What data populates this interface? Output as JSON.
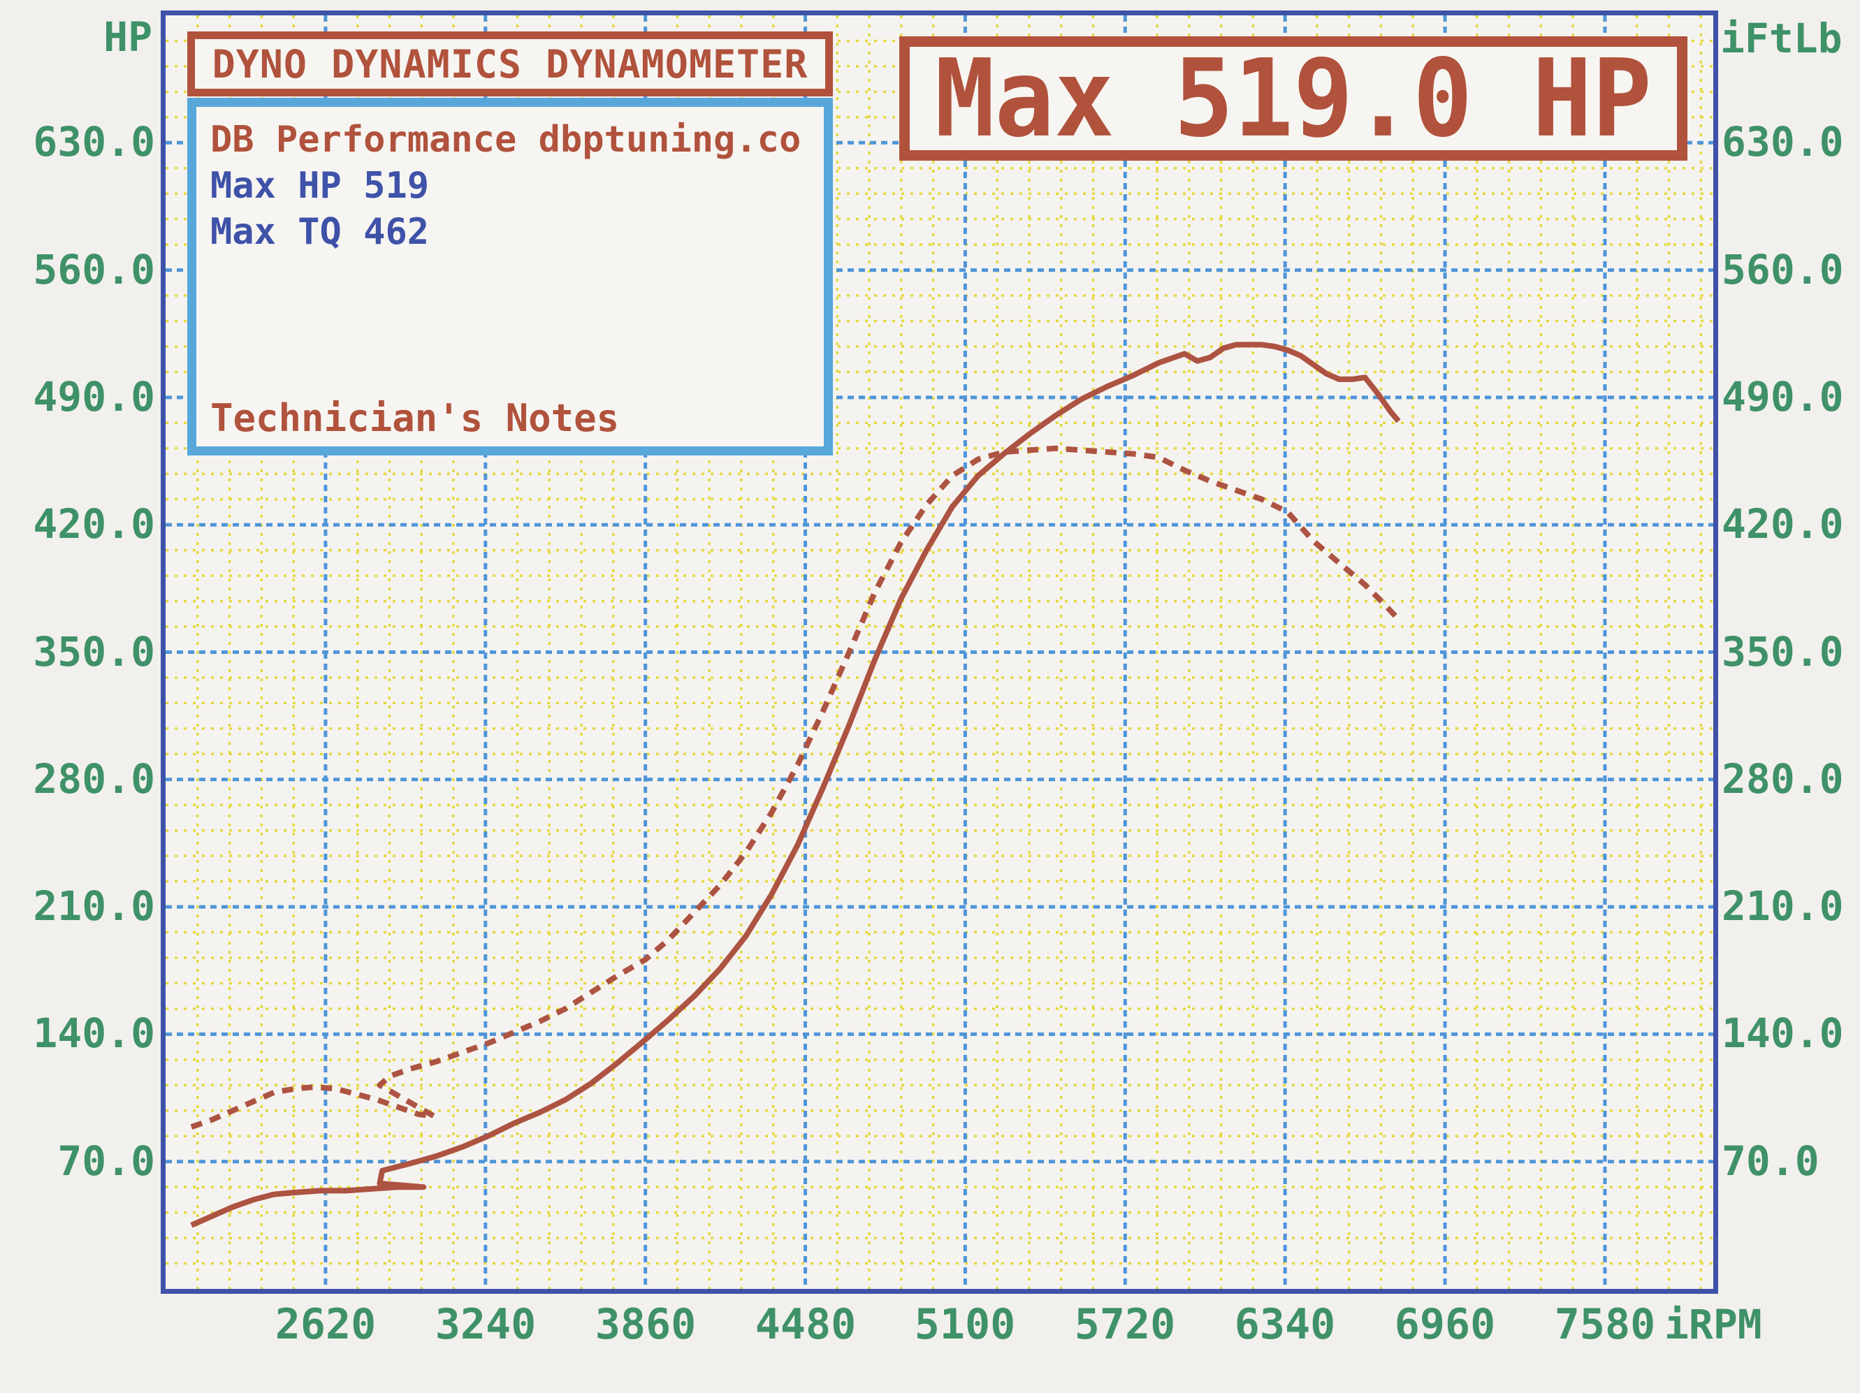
{
  "header": {
    "title_box_label": "DYNO DYNAMICS DYNAMOMETER",
    "max_box_label": "Max 519.0 HP"
  },
  "info_box": {
    "shop_line": "DB Performance dbptuning.co",
    "max_hp_line": "Max HP 519",
    "max_tq_line": "Max TQ 462",
    "notes_label": "Technician's Notes"
  },
  "axes": {
    "left_axis_title": "HP",
    "right_axis_title": "iFtLb",
    "x_unit_label": "iRPM",
    "y_ticks": [
      {
        "value": 630,
        "label": "630.0"
      },
      {
        "value": 560,
        "label": "560.0"
      },
      {
        "value": 490,
        "label": "490.0"
      },
      {
        "value": 420,
        "label": "420.0"
      },
      {
        "value": 350,
        "label": "350.0"
      },
      {
        "value": 280,
        "label": "280.0"
      },
      {
        "value": 210,
        "label": "210.0"
      },
      {
        "value": 140,
        "label": "140.0"
      },
      {
        "value": 70,
        "label": "70.0"
      }
    ],
    "x_ticks": [
      {
        "value": 2620,
        "label": "2620"
      },
      {
        "value": 3240,
        "label": "3240"
      },
      {
        "value": 3860,
        "label": "3860"
      },
      {
        "value": 4480,
        "label": "4480"
      },
      {
        "value": 5100,
        "label": "5100"
      },
      {
        "value": 5720,
        "label": "5720"
      },
      {
        "value": 6340,
        "label": "6340"
      },
      {
        "value": 6960,
        "label": "6960"
      },
      {
        "value": 7580,
        "label": "7580"
      }
    ]
  },
  "colors": {
    "curve_red": "#ad5342",
    "brand_red": "#b0523c",
    "navy_blue": "#3e52a8",
    "light_blue": "#57a7da",
    "green_text": "#3f9168",
    "grid_yellow": "#e6d83c",
    "grid_blue": "#4e95d9",
    "paper": "#f2f0ed"
  },
  "chart_data": {
    "type": "line",
    "title": "Max 519.0 HP",
    "xlabel": "iRPM",
    "ylabel_left": "HP",
    "ylabel_right": "iFtLb",
    "xlim": [
      2000,
      8000
    ],
    "ylim": [
      0,
      700
    ],
    "x_major_step": 620,
    "x_minor_step": 124,
    "y_major_step": 70,
    "y_minor_step": 14,
    "grid": "on",
    "series": [
      {
        "name": "HP",
        "style": "solid",
        "max": 519,
        "points": [
          [
            2100,
            35
          ],
          [
            2180,
            40
          ],
          [
            2260,
            45
          ],
          [
            2340,
            49
          ],
          [
            2420,
            52
          ],
          [
            2500,
            53
          ],
          [
            2600,
            54
          ],
          [
            2700,
            54
          ],
          [
            2800,
            55
          ],
          [
            2900,
            56
          ],
          [
            3000,
            56
          ],
          [
            2830,
            58
          ],
          [
            2840,
            65
          ],
          [
            2950,
            69
          ],
          [
            3050,
            73
          ],
          [
            3150,
            78
          ],
          [
            3250,
            84
          ],
          [
            3350,
            91
          ],
          [
            3450,
            97
          ],
          [
            3550,
            104
          ],
          [
            3650,
            113
          ],
          [
            3750,
            124
          ],
          [
            3860,
            137
          ],
          [
            3950,
            148
          ],
          [
            4050,
            161
          ],
          [
            4150,
            176
          ],
          [
            4250,
            194
          ],
          [
            4350,
            217
          ],
          [
            4450,
            244
          ],
          [
            4550,
            276
          ],
          [
            4650,
            310
          ],
          [
            4750,
            346
          ],
          [
            4850,
            379
          ],
          [
            4950,
            406
          ],
          [
            5050,
            430
          ],
          [
            5150,
            447
          ],
          [
            5250,
            459
          ],
          [
            5350,
            470
          ],
          [
            5450,
            480
          ],
          [
            5550,
            489
          ],
          [
            5650,
            496
          ],
          [
            5750,
            502
          ],
          [
            5850,
            509
          ],
          [
            5950,
            514
          ],
          [
            6000,
            510
          ],
          [
            6050,
            512
          ],
          [
            6100,
            517
          ],
          [
            6150,
            519
          ],
          [
            6250,
            519
          ],
          [
            6300,
            518
          ],
          [
            6350,
            516
          ],
          [
            6400,
            513
          ],
          [
            6450,
            508
          ],
          [
            6500,
            503
          ],
          [
            6550,
            500
          ],
          [
            6600,
            500
          ],
          [
            6650,
            501
          ],
          [
            6700,
            492
          ],
          [
            6750,
            482
          ],
          [
            6780,
            477
          ]
        ]
      },
      {
        "name": "TQ",
        "style": "dashed",
        "max": 462,
        "points": [
          [
            2100,
            89
          ],
          [
            2180,
            93
          ],
          [
            2260,
            98
          ],
          [
            2340,
            103
          ],
          [
            2420,
            108
          ],
          [
            2500,
            110
          ],
          [
            2580,
            111
          ],
          [
            2660,
            110
          ],
          [
            2740,
            107
          ],
          [
            2820,
            104
          ],
          [
            2900,
            100
          ],
          [
            2980,
            96
          ],
          [
            3040,
            95
          ],
          [
            2830,
            112
          ],
          [
            2870,
            117
          ],
          [
            2950,
            121
          ],
          [
            3050,
            125
          ],
          [
            3150,
            130
          ],
          [
            3250,
            135
          ],
          [
            3350,
            141
          ],
          [
            3450,
            147
          ],
          [
            3550,
            154
          ],
          [
            3650,
            163
          ],
          [
            3750,
            172
          ],
          [
            3860,
            181
          ],
          [
            3950,
            192
          ],
          [
            4050,
            207
          ],
          [
            4150,
            222
          ],
          [
            4250,
            240
          ],
          [
            4350,
            262
          ],
          [
            4450,
            288
          ],
          [
            4550,
            318
          ],
          [
            4650,
            350
          ],
          [
            4750,
            383
          ],
          [
            4850,
            410
          ],
          [
            4950,
            431
          ],
          [
            5050,
            447
          ],
          [
            5150,
            456
          ],
          [
            5250,
            460
          ],
          [
            5350,
            461
          ],
          [
            5450,
            462
          ],
          [
            5550,
            461
          ],
          [
            5650,
            460
          ],
          [
            5750,
            459
          ],
          [
            5850,
            457
          ],
          [
            5950,
            450
          ],
          [
            6050,
            444
          ],
          [
            6150,
            439
          ],
          [
            6250,
            434
          ],
          [
            6350,
            427
          ],
          [
            6450,
            411
          ],
          [
            6550,
            399
          ],
          [
            6650,
            387
          ],
          [
            6720,
            377
          ],
          [
            6780,
            368
          ]
        ]
      }
    ]
  }
}
